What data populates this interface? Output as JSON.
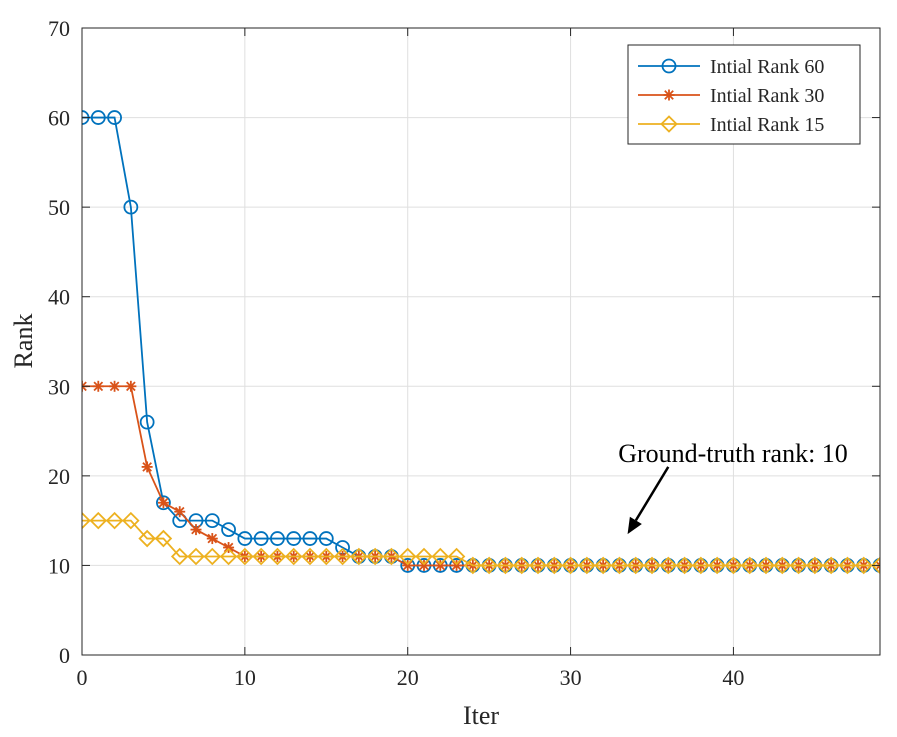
{
  "chart_data": {
    "type": "line",
    "xlabel": "Iter",
    "ylabel": "Rank",
    "xlim": [
      0,
      49
    ],
    "ylim": [
      0,
      70
    ],
    "xticks": [
      0,
      10,
      20,
      30,
      40
    ],
    "yticks": [
      0,
      10,
      20,
      30,
      40,
      50,
      60,
      70
    ],
    "grid": true,
    "legend_position": "top-right",
    "x": [
      0,
      1,
      2,
      3,
      4,
      5,
      6,
      7,
      8,
      9,
      10,
      11,
      12,
      13,
      14,
      15,
      16,
      17,
      18,
      19,
      20,
      21,
      22,
      23,
      24,
      25,
      26,
      27,
      28,
      29,
      30,
      31,
      32,
      33,
      34,
      35,
      36,
      37,
      38,
      39,
      40,
      41,
      42,
      43,
      44,
      45,
      46,
      47,
      48,
      49
    ],
    "series": [
      {
        "name": "Intial Rank 60",
        "color": "#0072BD",
        "marker": "circle",
        "values": [
          60,
          60,
          60,
          50,
          26,
          17,
          15,
          15,
          15,
          14,
          13,
          13,
          13,
          13,
          13,
          13,
          12,
          11,
          11,
          11,
          10,
          10,
          10,
          10,
          10,
          10,
          10,
          10,
          10,
          10,
          10,
          10,
          10,
          10,
          10,
          10,
          10,
          10,
          10,
          10,
          10,
          10,
          10,
          10,
          10,
          10,
          10,
          10,
          10,
          10
        ]
      },
      {
        "name": "Intial Rank 30",
        "color": "#D95319",
        "marker": "asterisk",
        "values": [
          30,
          30,
          30,
          30,
          21,
          17,
          16,
          14,
          13,
          12,
          11,
          11,
          11,
          11,
          11,
          11,
          11,
          11,
          11,
          11,
          10,
          10,
          10,
          10,
          10,
          10,
          10,
          10,
          10,
          10,
          10,
          10,
          10,
          10,
          10,
          10,
          10,
          10,
          10,
          10,
          10,
          10,
          10,
          10,
          10,
          10,
          10,
          10,
          10,
          10
        ]
      },
      {
        "name": "Intial Rank 15",
        "color": "#EDB120",
        "marker": "diamond",
        "values": [
          15,
          15,
          15,
          15,
          13,
          13,
          11,
          11,
          11,
          11,
          11,
          11,
          11,
          11,
          11,
          11,
          11,
          11,
          11,
          11,
          11,
          11,
          11,
          11,
          10,
          10,
          10,
          10,
          10,
          10,
          10,
          10,
          10,
          10,
          10,
          10,
          10,
          10,
          10,
          10,
          10,
          10,
          10,
          10,
          10,
          10,
          10,
          10,
          10,
          10
        ]
      }
    ],
    "annotation": {
      "text": "Ground-truth rank: 10",
      "arrow_from": [
        36,
        21
      ],
      "arrow_to": [
        33.5,
        13.5
      ]
    }
  }
}
